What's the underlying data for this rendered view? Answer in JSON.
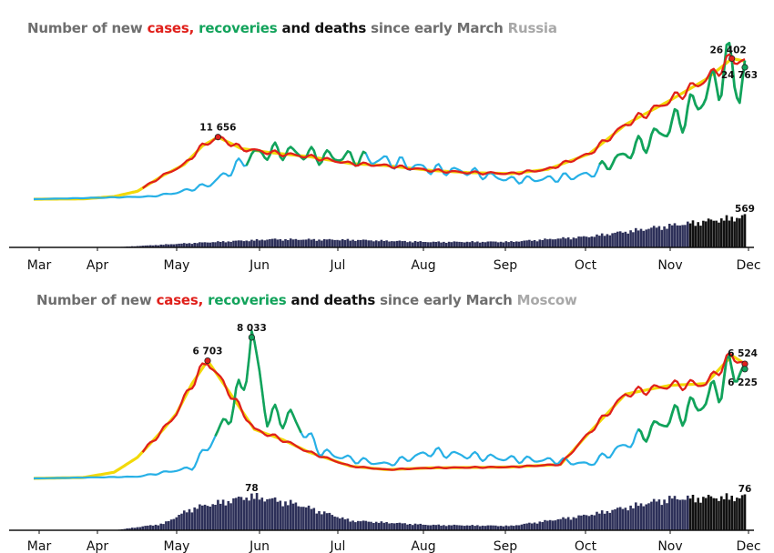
{
  "colors": {
    "grey": "#6e6e6e",
    "cases": "#e0201b",
    "recoveries": "#12a35b",
    "deaths": "#111111",
    "region": "#a8a8a8",
    "ref_smooth": "#f2d90a",
    "recovery_pre": "#27b0e6",
    "deaths_bar": "#2d3059",
    "deaths_bar_late": "#111111"
  },
  "chart_data": [
    {
      "type": "line",
      "title": {
        "prefix": "Number of new ",
        "cases": "cases,",
        "recoveries": " recoveries",
        "deaths": " and deaths",
        "suffix": " since early March",
        "region": " Russia"
      },
      "x_ticks": [
        "Mar",
        "Apr",
        "May",
        "Jun",
        "Jul",
        "Aug",
        "Sep",
        "Oct",
        "Nov",
        "Dec"
      ],
      "x_range": [
        "2020-03-01",
        "2020-12-01"
      ],
      "series": [
        {
          "key": "cases",
          "points": [
            [
              "2020-03-01",
              0
            ],
            [
              "2020-03-20",
              50
            ],
            [
              "2020-04-01",
              500
            ],
            [
              "2020-04-10",
              1500
            ],
            [
              "2020-04-20",
              4500
            ],
            [
              "2020-04-28",
              6500
            ],
            [
              "2020-05-05",
              10000
            ],
            [
              "2020-05-11",
              11656
            ],
            [
              "2020-05-20",
              9500
            ],
            [
              "2020-06-01",
              8700
            ],
            [
              "2020-06-15",
              8000
            ],
            [
              "2020-07-01",
              6700
            ],
            [
              "2020-07-15",
              6300
            ],
            [
              "2020-08-01",
              5400
            ],
            [
              "2020-08-15",
              5000
            ],
            [
              "2020-09-01",
              4800
            ],
            [
              "2020-09-15",
              5600
            ],
            [
              "2020-10-01",
              8500
            ],
            [
              "2020-10-15",
              14000
            ],
            [
              "2020-11-01",
              18500
            ],
            [
              "2020-11-15",
              22500
            ],
            [
              "2020-11-21",
              24800
            ],
            [
              "2020-11-25",
              26402
            ],
            [
              "2020-11-30",
              25900
            ]
          ]
        },
        {
          "key": "recoveries",
          "points": [
            [
              "2020-03-01",
              0
            ],
            [
              "2020-04-15",
              500
            ],
            [
              "2020-04-25",
              1200
            ],
            [
              "2020-05-08",
              2800
            ],
            [
              "2020-05-16",
              5400
            ],
            [
              "2020-05-25",
              8500
            ],
            [
              "2020-06-05",
              9000
            ],
            [
              "2020-06-20",
              8000
            ],
            [
              "2020-07-01",
              7800
            ],
            [
              "2020-07-15",
              7200
            ],
            [
              "2020-08-01",
              5600
            ],
            [
              "2020-08-15",
              5200
            ],
            [
              "2020-09-01",
              3600
            ],
            [
              "2020-09-15",
              3800
            ],
            [
              "2020-10-01",
              4600
            ],
            [
              "2020-10-15",
              8400
            ],
            [
              "2020-11-01",
              13500
            ],
            [
              "2020-11-15",
              19500
            ],
            [
              "2020-11-25",
              26000
            ],
            [
              "2020-11-28",
              19000
            ],
            [
              "2020-11-30",
              24763
            ]
          ]
        }
      ],
      "deaths": {
        "ymax": 600,
        "points": [
          [
            "2020-04-01",
            2
          ],
          [
            "2020-05-01",
            80
          ],
          [
            "2020-06-01",
            150
          ],
          [
            "2020-07-01",
            140
          ],
          [
            "2020-08-01",
            100
          ],
          [
            "2020-09-01",
            105
          ],
          [
            "2020-10-01",
            200
          ],
          [
            "2020-11-01",
            400
          ],
          [
            "2020-11-30",
            569
          ]
        ]
      },
      "y_max": 28000,
      "annotations": [
        {
          "label": "11 656",
          "x": "2020-05-11",
          "y": 11656,
          "series": "cases"
        },
        {
          "label": "26 402",
          "x": "2020-11-25",
          "y": 26402,
          "series": "cases"
        },
        {
          "label": "24 763",
          "x": "2020-11-30",
          "y": 24763,
          "series": "recoveries"
        },
        {
          "label": "569",
          "x": "2020-11-30",
          "y": 569,
          "series": "deaths"
        }
      ]
    },
    {
      "type": "line",
      "title": {
        "prefix": "Number of new ",
        "cases": "cases,",
        "recoveries": " recoveries",
        "deaths": " and deaths",
        "suffix": " since early March",
        "region": " Moscow"
      },
      "x_ticks": [
        "Mar",
        "Apr",
        "May",
        "Jun",
        "Jul",
        "Aug",
        "Sep",
        "Oct",
        "Nov",
        "Dec"
      ],
      "x_range": [
        "2020-03-01",
        "2020-12-01"
      ],
      "series": [
        {
          "key": "cases",
          "points": [
            [
              "2020-03-01",
              0
            ],
            [
              "2020-03-20",
              50
            ],
            [
              "2020-04-01",
              350
            ],
            [
              "2020-04-10",
              1200
            ],
            [
              "2020-04-20",
              2800
            ],
            [
              "2020-04-25",
              3700
            ],
            [
              "2020-05-01",
              5400
            ],
            [
              "2020-05-07",
              6703
            ],
            [
              "2020-05-15",
              5000
            ],
            [
              "2020-05-25",
              2800
            ],
            [
              "2020-06-05",
              2200
            ],
            [
              "2020-06-15",
              1500
            ],
            [
              "2020-07-01",
              700
            ],
            [
              "2020-07-15",
              500
            ],
            [
              "2020-08-01",
              600
            ],
            [
              "2020-09-01",
              650
            ],
            [
              "2020-09-20",
              800
            ],
            [
              "2020-10-01",
              2600
            ],
            [
              "2020-10-15",
              4800
            ],
            [
              "2020-11-01",
              5300
            ],
            [
              "2020-11-15",
              5400
            ],
            [
              "2020-11-25",
              7000
            ],
            [
              "2020-11-30",
              6524
            ]
          ]
        },
        {
          "key": "recoveries",
          "points": [
            [
              "2020-03-01",
              0
            ],
            [
              "2020-04-10",
              100
            ],
            [
              "2020-05-01",
              600
            ],
            [
              "2020-05-12",
              2800
            ],
            [
              "2020-05-20",
              5000
            ],
            [
              "2020-05-24",
              8033
            ],
            [
              "2020-05-30",
              3500
            ],
            [
              "2020-06-08",
              3500
            ],
            [
              "2020-06-20",
              1500
            ],
            [
              "2020-07-01",
              1100
            ],
            [
              "2020-07-15",
              800
            ],
            [
              "2020-08-01",
              1500
            ],
            [
              "2020-08-15",
              1300
            ],
            [
              "2020-09-01",
              1100
            ],
            [
              "2020-09-20",
              1000
            ],
            [
              "2020-10-01",
              800
            ],
            [
              "2020-10-15",
              1900
            ],
            [
              "2020-11-01",
              3400
            ],
            [
              "2020-11-15",
              4400
            ],
            [
              "2020-11-25",
              6200
            ],
            [
              "2020-11-30",
              6225
            ]
          ]
        }
      ],
      "deaths": {
        "ymax": 80,
        "points": [
          [
            "2020-04-01",
            0
          ],
          [
            "2020-04-20",
            15
          ],
          [
            "2020-05-01",
            50
          ],
          [
            "2020-05-24",
            78
          ],
          [
            "2020-06-10",
            60
          ],
          [
            "2020-07-01",
            22
          ],
          [
            "2020-08-01",
            12
          ],
          [
            "2020-09-01",
            10
          ],
          [
            "2020-10-01",
            35
          ],
          [
            "2020-11-01",
            72
          ],
          [
            "2020-11-30",
            76
          ]
        ]
      },
      "y_max": 8600,
      "annotations": [
        {
          "label": "6 703",
          "x": "2020-05-07",
          "y": 6703,
          "series": "cases"
        },
        {
          "label": "8 033",
          "x": "2020-05-24",
          "y": 8033,
          "series": "recoveries"
        },
        {
          "label": "6 524",
          "x": "2020-11-30",
          "y": 6524,
          "series": "cases"
        },
        {
          "label": "6 225",
          "x": "2020-11-30",
          "y": 6225,
          "series": "recoveries"
        },
        {
          "label": "78",
          "x": "2020-05-24",
          "y": 78,
          "series": "deaths"
        },
        {
          "label": "76",
          "x": "2020-11-30",
          "y": 76,
          "series": "deaths"
        }
      ]
    }
  ]
}
